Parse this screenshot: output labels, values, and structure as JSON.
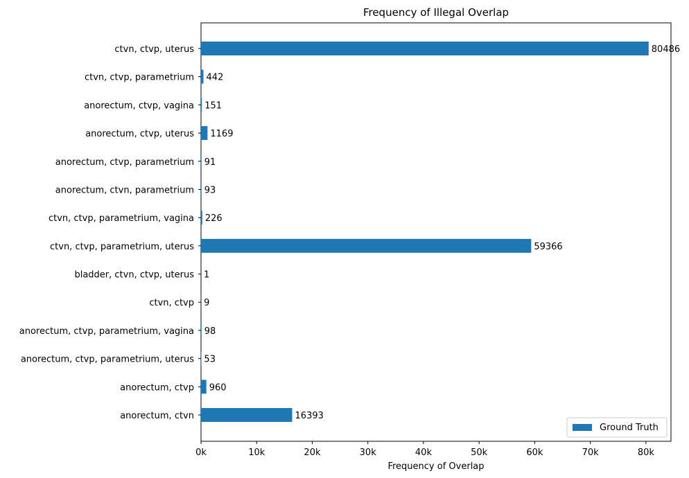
{
  "chart_data": {
    "type": "bar",
    "orientation": "horizontal",
    "title": "Frequency of Illegal Overlap",
    "xlabel": "Frequency of Overlap",
    "ylabel": "",
    "xlim": [
      0,
      84500
    ],
    "xticks": [
      0,
      10000,
      20000,
      30000,
      40000,
      50000,
      60000,
      70000,
      80000
    ],
    "xtick_labels": [
      "0k",
      "10k",
      "20k",
      "30k",
      "40k",
      "50k",
      "60k",
      "70k",
      "80k"
    ],
    "grid": false,
    "legend_position": "lower-right",
    "categories": [
      "ctvn, ctvp, uterus",
      "ctvn, ctvp, parametrium",
      "anorectum, ctvp, vagina",
      "anorectum, ctvp, uterus",
      "anorectum, ctvp, parametrium",
      "anorectum, ctvn, parametrium",
      "ctvn, ctvp, parametrium, vagina",
      "ctvn, ctvp, parametrium, uterus",
      "bladder, ctvn, ctvp, uterus",
      "ctvn, ctvp",
      "anorectum, ctvp, parametrium, vagina",
      "anorectum, ctvp, parametrium, uterus",
      "anorectum, ctvp",
      "anorectum, ctvn"
    ],
    "series": [
      {
        "name": "Ground Truth",
        "color": "#1f77b4",
        "values": [
          80486,
          442,
          151,
          1169,
          91,
          93,
          226,
          59366,
          1,
          9,
          98,
          53,
          960,
          16393
        ],
        "labels": [
          "80486",
          "442",
          "151",
          "1169",
          "91",
          "93",
          "226",
          "59366",
          "1",
          "9",
          "98",
          "53",
          "960",
          "16393"
        ]
      }
    ]
  }
}
